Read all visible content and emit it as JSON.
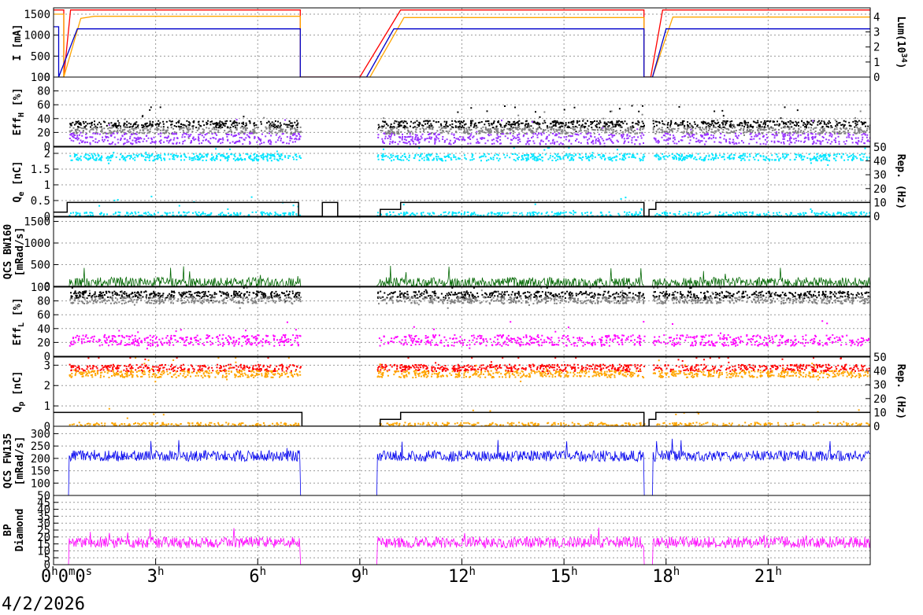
{
  "date_label": "4/2/2026",
  "time_axis": {
    "ticks": [
      {
        "t": 0,
        "label": "0",
        "sup": "h",
        "label2": "0",
        "sup2": "m",
        "label3": "0",
        "sup3": "s"
      },
      {
        "t": 3,
        "label": "3",
        "sup": "h"
      },
      {
        "t": 6,
        "label": "6",
        "sup": "h"
      },
      {
        "t": 9,
        "label": "9",
        "sup": "h"
      },
      {
        "t": 12,
        "label": "12",
        "sup": "h"
      },
      {
        "t": 15,
        "label": "15",
        "sup": "h"
      },
      {
        "t": 18,
        "label": "18",
        "sup": "h"
      },
      {
        "t": 21,
        "label": "21",
        "sup": "h"
      }
    ],
    "range_hours": [
      0,
      24
    ]
  },
  "colors": {
    "red": "#ff0000",
    "orange": "#ffa500",
    "blue": "#0000cc",
    "black": "#000000",
    "gray": "#808080",
    "purple": "#9933ff",
    "cyan": "#00e5ff",
    "darkgreen": "#006600",
    "magenta": "#ff00ff",
    "blue2": "#0000ee"
  },
  "chart_data": [
    {
      "type": "line",
      "ylabel": "I [mA]",
      "ylabel_right": "Lum(10^34)",
      "ylabel_right_base": "Lum(10",
      "ylabel_right_sup": "34",
      "ylabel_right_end": ")",
      "yticks": [
        "0",
        "500",
        "1000",
        "1500"
      ],
      "ylim": [
        0,
        1650
      ],
      "yticks_right": [
        "0",
        "1",
        "2",
        "3",
        "4"
      ],
      "ylim_right": [
        0,
        4.6
      ],
      "series": [
        {
          "color": "red",
          "points": [
            [
              0,
              1600
            ],
            [
              0.3,
              1600
            ],
            [
              0.3,
              0
            ],
            [
              0.5,
              1600
            ],
            [
              7.25,
              1600
            ],
            [
              7.25,
              0
            ],
            [
              9.0,
              0
            ],
            [
              10.2,
              1600
            ],
            [
              17.35,
              1600
            ],
            [
              17.35,
              0
            ],
            [
              17.55,
              0
            ],
            [
              17.9,
              1600
            ],
            [
              24,
              1600
            ]
          ]
        },
        {
          "color": "orange",
          "points": [
            [
              0,
              1500
            ],
            [
              0.3,
              1500
            ],
            [
              0.3,
              0
            ],
            [
              0.8,
              1400
            ],
            [
              1.2,
              1450
            ],
            [
              7.25,
              1450
            ],
            [
              7.25,
              0
            ],
            [
              9.3,
              0
            ],
            [
              10.3,
              1420
            ],
            [
              17.35,
              1420
            ],
            [
              17.35,
              0
            ],
            [
              17.6,
              0
            ],
            [
              18.2,
              1430
            ],
            [
              24,
              1430
            ]
          ]
        },
        {
          "color": "blue",
          "points": [
            [
              0,
              1200
            ],
            [
              0.15,
              1200
            ],
            [
              0.15,
              0
            ],
            [
              0.7,
              1150
            ],
            [
              7.25,
              1150
            ],
            [
              7.25,
              0
            ],
            [
              9.2,
              0
            ],
            [
              10.0,
              1150
            ],
            [
              17.35,
              1150
            ],
            [
              17.35,
              0
            ],
            [
              17.6,
              0
            ],
            [
              18.0,
              1150
            ],
            [
              24,
              1150
            ]
          ]
        }
      ]
    },
    {
      "type": "scatter",
      "ylabel": "Eff_H [%]",
      "ylabel_base": "Eff",
      "ylabel_sub": "H",
      "ylabel_end": " [%]",
      "yticks": [
        "0",
        "20",
        "40",
        "60",
        "80",
        "100"
      ],
      "ylim": [
        0,
        100
      ],
      "series": [
        {
          "color": "black",
          "level": 33
        },
        {
          "color": "gray",
          "level": 24
        },
        {
          "color": "purple",
          "level": 12
        }
      ]
    },
    {
      "type": "scatter",
      "ylabel": "Q_e [nC]",
      "ylabel_base": "Q",
      "ylabel_sub": "e",
      "ylabel_end": " [nC]",
      "ylabel_right": "Rep. (Hz)",
      "yticks": [
        "0",
        "0.5",
        "1",
        "1.5",
        "2"
      ],
      "ylim": [
        0,
        2.2
      ],
      "yticks_right": [
        "0",
        "10",
        "20",
        "30",
        "40",
        "50"
      ],
      "ylim_right": [
        0,
        50
      ],
      "series": [
        {
          "color": "cyan",
          "level": 1.9
        },
        {
          "color": "cyan",
          "level": 0.05
        },
        {
          "color": "black",
          "kind": "rep",
          "points": [
            [
              0,
              3
            ],
            [
              0.4,
              3
            ],
            [
              0.4,
              10
            ],
            [
              1.0,
              10
            ],
            [
              7.2,
              10
            ],
            [
              7.2,
              0
            ],
            [
              7.9,
              0
            ],
            [
              7.9,
              10
            ],
            [
              8.35,
              10
            ],
            [
              8.35,
              0
            ],
            [
              9.6,
              0
            ],
            [
              9.6,
              5
            ],
            [
              10.2,
              5
            ],
            [
              10.2,
              10
            ],
            [
              17.35,
              10
            ],
            [
              17.35,
              0
            ],
            [
              17.5,
              0
            ],
            [
              17.5,
              5
            ],
            [
              17.7,
              5
            ],
            [
              17.7,
              10
            ],
            [
              24,
              10
            ]
          ]
        }
      ]
    },
    {
      "type": "line",
      "ylabel": "QCS BW160 [mRad/s]",
      "ylabel_l1": "QCS BW160",
      "ylabel_l2": "[mRad/s]",
      "yticks": [
        "0",
        "500",
        "1000",
        "1500"
      ],
      "ylim": [
        0,
        1600
      ],
      "series": [
        {
          "color": "darkgreen",
          "level": 80
        }
      ]
    },
    {
      "type": "scatter",
      "ylabel": "Eff_L [%]",
      "ylabel_base": "Eff",
      "ylabel_sub": "L",
      "ylabel_end": " [%]",
      "yticks": [
        "0",
        "20",
        "40",
        "60",
        "80",
        "100"
      ],
      "ylim": [
        0,
        100
      ],
      "series": [
        {
          "color": "black",
          "level": 90
        },
        {
          "color": "gray",
          "level": 82
        },
        {
          "color": "magenta",
          "level": 24
        }
      ]
    },
    {
      "type": "scatter",
      "ylabel": "Q_p [nC]",
      "ylabel_base": "Q",
      "ylabel_sub": "p",
      "ylabel_end": " [nC]",
      "ylabel_right": "Rep. (Hz)",
      "yticks": [
        "0",
        "1",
        "2",
        "3"
      ],
      "ylim": [
        0,
        3.4
      ],
      "yticks_right": [
        "0",
        "10",
        "20",
        "30",
        "40",
        "50"
      ],
      "ylim_right": [
        0,
        50
      ],
      "series": [
        {
          "color": "red",
          "level": 2.9
        },
        {
          "color": "orange",
          "level": 2.6
        },
        {
          "color": "orange",
          "level": 0.05
        },
        {
          "color": "black",
          "kind": "rep",
          "points": [
            [
              0,
              10
            ],
            [
              7.3,
              10
            ],
            [
              7.3,
              0
            ],
            [
              9.6,
              0
            ],
            [
              9.6,
              5
            ],
            [
              10.2,
              5
            ],
            [
              10.2,
              10
            ],
            [
              17.35,
              10
            ],
            [
              17.35,
              0
            ],
            [
              17.5,
              0
            ],
            [
              17.5,
              5
            ],
            [
              17.7,
              5
            ],
            [
              17.7,
              10
            ],
            [
              24,
              10
            ]
          ]
        }
      ]
    },
    {
      "type": "line",
      "ylabel": "QCS FW135 [mRad/s]",
      "ylabel_l1": "QCS FW135",
      "ylabel_l2": "[mRad/s]",
      "yticks": [
        "50",
        "100",
        "150",
        "200",
        "250",
        "300"
      ],
      "ylim": [
        50,
        330
      ],
      "series": [
        {
          "color": "blue2",
          "level": 210
        }
      ]
    },
    {
      "type": "line",
      "ylabel": "BP Diamond",
      "ylabel_l1": "BP",
      "ylabel_l2": "Diamond",
      "yticks": [
        "0",
        "5",
        "10",
        "15",
        "20",
        "25",
        "30",
        "35",
        "40",
        "45"
      ],
      "ylim": [
        0,
        50
      ],
      "series": [
        {
          "color": "magenta",
          "level": 16
        }
      ]
    }
  ]
}
